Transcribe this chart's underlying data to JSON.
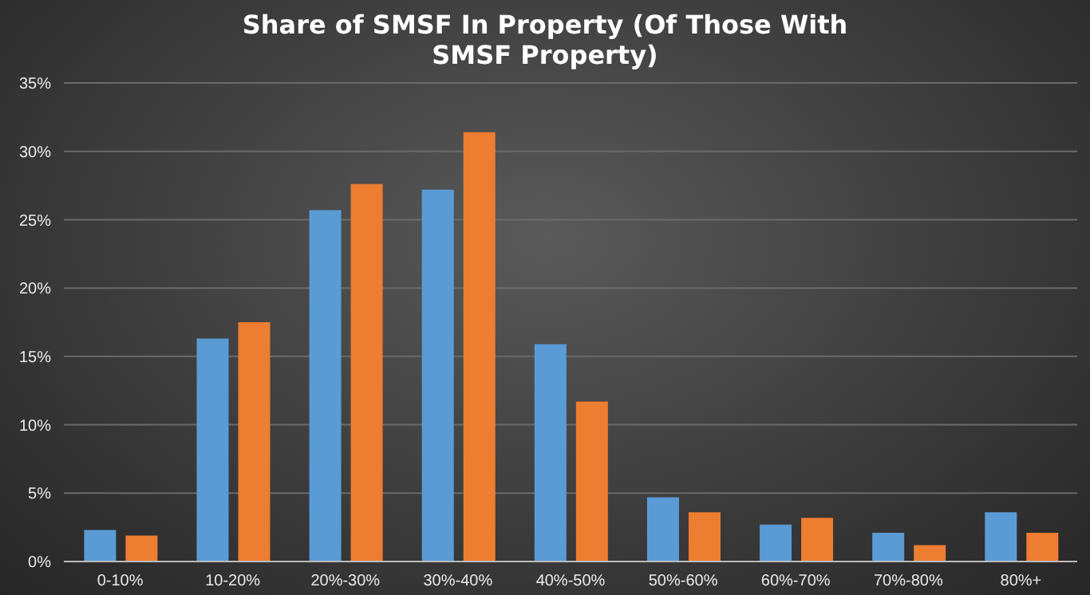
{
  "chart_data": {
    "type": "bar",
    "title": "Share of SMSF In Property (Of Those With SMSF Property)",
    "categories": [
      "0-10%",
      "10-20%",
      "20%-30%",
      "30%-40%",
      "40%-50%",
      "50%-60%",
      "60%-70%",
      "70%-80%",
      "80%+"
    ],
    "series": [
      {
        "color": "#5b9bd5",
        "values": [
          2.3,
          16.3,
          25.7,
          27.2,
          15.9,
          4.7,
          2.7,
          2.1,
          3.6
        ]
      },
      {
        "color": "#ed7d31",
        "values": [
          1.9,
          17.5,
          27.6,
          31.4,
          11.7,
          3.6,
          3.2,
          1.2,
          2.1
        ]
      }
    ],
    "ylim": [
      0,
      35
    ],
    "yticks": [
      {
        "value": 0,
        "label": "0%"
      },
      {
        "value": 5,
        "label": "5%"
      },
      {
        "value": 10,
        "label": "10%"
      },
      {
        "value": 15,
        "label": "15%"
      },
      {
        "value": 20,
        "label": "20%"
      },
      {
        "value": 25,
        "label": "25%"
      },
      {
        "value": 30,
        "label": "30%"
      },
      {
        "value": 35,
        "label": "35%"
      }
    ],
    "grid": "y",
    "legend": false
  }
}
